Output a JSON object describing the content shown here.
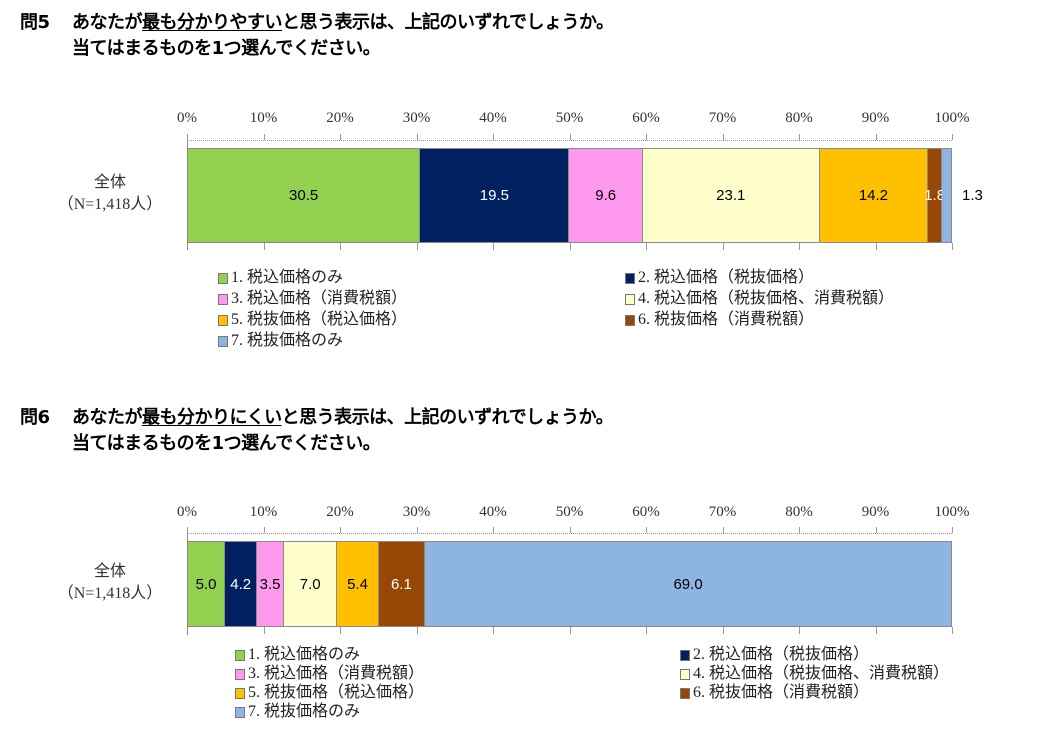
{
  "questions": [
    {
      "number": "問5",
      "line1_pre": "あなたが",
      "line1_underlined": "最も分かりやすい",
      "line1_post": "と思う表示は、上記のいずれでしょうか。",
      "line2": "当てはまるものを1つ選んでください。"
    },
    {
      "number": "問6",
      "line1_pre": "あなたが",
      "line1_underlined": "最も分かりにくい",
      "line1_post": "と思う表示は、上記のいずれでしょうか。",
      "line2": "当てはまるものを1つ選んでください。"
    }
  ],
  "axis_ticks": [
    "0%",
    "10%",
    "20%",
    "30%",
    "40%",
    "50%",
    "60%",
    "70%",
    "80%",
    "90%",
    "100%"
  ],
  "category": {
    "line1": "全体",
    "line2": "（N=1,418人）"
  },
  "legend": [
    {
      "label": "1. 税込価格のみ",
      "color": "#92D050"
    },
    {
      "label": "2. 税込価格（税抜価格）",
      "color": "#002060"
    },
    {
      "label": "3. 税込価格（消費税額）",
      "color": "#FF99EE"
    },
    {
      "label": "4. 税込価格（税抜価格、消費税額）",
      "color": "#FFFFCC"
    },
    {
      "label": "5. 税抜価格（税込価格）",
      "color": "#FFC000"
    },
    {
      "label": "6. 税抜価格（消費税額）",
      "color": "#974706"
    },
    {
      "label": "7. 税抜価格のみ",
      "color": "#8EB4E3"
    }
  ],
  "chart_data": [
    {
      "type": "bar",
      "orientation": "horizontal-stacked-100",
      "title": "問5 あなたが最も分かりやすいと思う表示は、上記のいずれでしょうか。当てはまるものを1つ選んでください。",
      "categories": [
        "全体（N=1,418人）"
      ],
      "xlabel": "",
      "ylabel": "",
      "xlim": [
        0,
        100
      ],
      "x_ticks": [
        "0%",
        "10%",
        "20%",
        "30%",
        "40%",
        "50%",
        "60%",
        "70%",
        "80%",
        "90%",
        "100%"
      ],
      "legend_position": "bottom",
      "series": [
        {
          "name": "1. 税込価格のみ",
          "values": [
            30.5
          ],
          "label": "30.5",
          "color": "#92D050",
          "text_color": "#000000"
        },
        {
          "name": "2. 税込価格（税抜価格）",
          "values": [
            19.5
          ],
          "label": "19.5",
          "color": "#002060",
          "text_color": "#FFFFFF"
        },
        {
          "name": "3. 税込価格（消費税額）",
          "values": [
            9.6
          ],
          "label": "9.6",
          "color": "#FF99EE",
          "text_color": "#000000"
        },
        {
          "name": "4. 税込価格（税抜価格、消費税額）",
          "values": [
            23.1
          ],
          "label": "23.1",
          "color": "#FFFFCC",
          "text_color": "#000000"
        },
        {
          "name": "5. 税抜価格（税込価格）",
          "values": [
            14.2
          ],
          "label": "14.2",
          "color": "#FFC000",
          "text_color": "#000000"
        },
        {
          "name": "6. 税抜価格（消費税額）",
          "values": [
            1.8
          ],
          "label": "1.8",
          "color": "#974706",
          "text_color": "#FFFFFF"
        },
        {
          "name": "7. 税抜価格のみ",
          "values": [
            1.3
          ],
          "label": "1.3",
          "color": "#8EB4E3",
          "text_color": "#000000",
          "label_outside": true
        }
      ]
    },
    {
      "type": "bar",
      "orientation": "horizontal-stacked-100",
      "title": "問6 あなたが最も分かりにくいと思う表示は、上記のいずれでしょうか。当てはまるものを1つ選んでください。",
      "categories": [
        "全体（N=1,418人）"
      ],
      "xlabel": "",
      "ylabel": "",
      "xlim": [
        0,
        100
      ],
      "x_ticks": [
        "0%",
        "10%",
        "20%",
        "30%",
        "40%",
        "50%",
        "60%",
        "70%",
        "80%",
        "90%",
        "100%"
      ],
      "legend_position": "bottom",
      "series": [
        {
          "name": "1. 税込価格のみ",
          "values": [
            5.0
          ],
          "label": "5.0",
          "color": "#92D050",
          "text_color": "#000000"
        },
        {
          "name": "2. 税込価格（税抜価格）",
          "values": [
            4.2
          ],
          "label": "4.2",
          "color": "#002060",
          "text_color": "#FFFFFF"
        },
        {
          "name": "3. 税込価格（消費税額）",
          "values": [
            3.5
          ],
          "label": "3.5",
          "color": "#FF99EE",
          "text_color": "#000000"
        },
        {
          "name": "4. 税込価格（税抜価格、消費税額）",
          "values": [
            7.0
          ],
          "label": "7.0",
          "color": "#FFFFCC",
          "text_color": "#000000"
        },
        {
          "name": "5. 税抜価格（税込価格）",
          "values": [
            5.4
          ],
          "label": "5.4",
          "color": "#FFC000",
          "text_color": "#000000"
        },
        {
          "name": "6. 税抜価格（消費税額）",
          "values": [
            6.1
          ],
          "label": "6.1",
          "color": "#974706",
          "text_color": "#FFFFFF"
        },
        {
          "name": "7. 税抜価格のみ",
          "values": [
            69.0
          ],
          "label": "69.0",
          "color": "#8EB4E3",
          "text_color": "#000000"
        }
      ]
    }
  ]
}
